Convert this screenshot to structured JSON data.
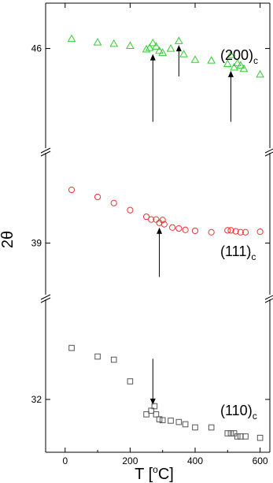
{
  "chart_data": {
    "type": "scatter",
    "xlabel": "T [oC]",
    "xlabel_base": "T [",
    "xlabel_sup": "o",
    "xlabel_end": "C]",
    "ylabel": "2θ",
    "xlim": [
      -60,
      630
    ],
    "x_ticks": [
      0,
      200,
      400,
      600
    ],
    "x_tick_labels": [
      "0",
      "200",
      "400",
      "600"
    ],
    "panels": [
      {
        "label": "(200)",
        "label_sub": "c",
        "marker": "triangle",
        "color": "#33cc33",
        "ylim": [
          44.55,
          46.65
        ],
        "y_tick": 46,
        "y_tick_label": "46",
        "points": [
          [
            20,
            46.14
          ],
          [
            100,
            46.09
          ],
          [
            150,
            46.07
          ],
          [
            200,
            46.04
          ],
          [
            250,
            45.99
          ],
          [
            260,
            46.01
          ],
          [
            270,
            46.08
          ],
          [
            280,
            46.03
          ],
          [
            290,
            45.97
          ],
          [
            300,
            45.94
          ],
          [
            325,
            46.0
          ],
          [
            350,
            46.11
          ],
          [
            365,
            45.92
          ],
          [
            400,
            45.84
          ],
          [
            450,
            45.83
          ],
          [
            500,
            45.78
          ],
          [
            510,
            45.91
          ],
          [
            520,
            45.73
          ],
          [
            530,
            45.79
          ],
          [
            540,
            45.76
          ],
          [
            550,
            45.71
          ],
          [
            600,
            45.63
          ]
        ],
        "arrows": [
          {
            "x": 270,
            "from": 44.95,
            "to": 45.92
          },
          {
            "x": 350,
            "from": 45.6,
            "to": 46.05
          },
          {
            "x": 510,
            "from": 44.95,
            "to": 45.68
          }
        ]
      },
      {
        "label": "(111)",
        "label_sub": "c",
        "marker": "circle",
        "color": "#ee3333",
        "ylim": [
          37.87,
          40.95
        ],
        "y_tick": 39,
        "y_tick_label": "39",
        "points": [
          [
            20,
            40.13
          ],
          [
            100,
            39.98
          ],
          [
            150,
            39.85
          ],
          [
            200,
            39.7
          ],
          [
            250,
            39.56
          ],
          [
            265,
            39.5
          ],
          [
            280,
            39.5
          ],
          [
            290,
            39.43
          ],
          [
            300,
            39.49
          ],
          [
            305,
            39.4
          ],
          [
            330,
            39.33
          ],
          [
            350,
            39.31
          ],
          [
            370,
            39.28
          ],
          [
            400,
            39.26
          ],
          [
            450,
            39.23
          ],
          [
            500,
            39.27
          ],
          [
            510,
            39.27
          ],
          [
            525,
            39.25
          ],
          [
            540,
            39.23
          ],
          [
            555,
            39.23
          ],
          [
            600,
            39.24
          ]
        ],
        "arrows": [
          {
            "x": 290,
            "from": 38.28,
            "to": 39.33
          }
        ]
      },
      {
        "label": "(110)",
        "label_sub": "c",
        "marker": "square",
        "color": "#555555",
        "ylim": [
          30.83,
          34.25
        ],
        "y_tick": 32,
        "y_tick_label": "32",
        "points": [
          [
            20,
            33.14
          ],
          [
            100,
            32.95
          ],
          [
            150,
            32.88
          ],
          [
            200,
            32.4
          ],
          [
            250,
            31.67
          ],
          [
            265,
            31.75
          ],
          [
            275,
            31.85
          ],
          [
            280,
            31.67
          ],
          [
            290,
            31.56
          ],
          [
            300,
            31.54
          ],
          [
            325,
            31.53
          ],
          [
            350,
            31.5
          ],
          [
            370,
            31.45
          ],
          [
            400,
            31.38
          ],
          [
            450,
            31.38
          ],
          [
            500,
            31.25
          ],
          [
            510,
            31.25
          ],
          [
            520,
            31.25
          ],
          [
            530,
            31.18
          ],
          [
            540,
            31.18
          ],
          [
            555,
            31.18
          ],
          [
            600,
            31.15
          ]
        ],
        "arrows": [
          {
            "x": 270,
            "from": 32.9,
            "to": 31.88
          }
        ]
      }
    ]
  }
}
